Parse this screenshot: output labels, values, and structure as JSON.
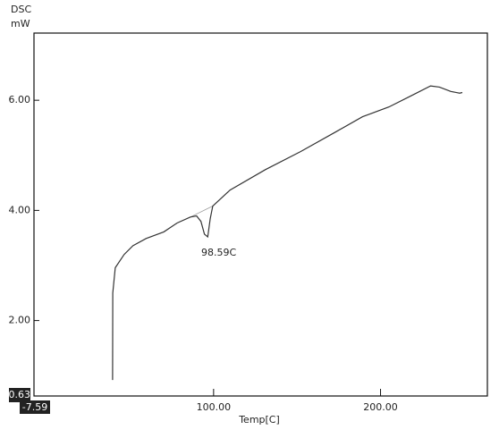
{
  "chart_data": {
    "type": "line",
    "y_label_top": "DSC",
    "y_label_unit": "mW",
    "x_label": "Temp[C]",
    "annotation": "98.59C",
    "xlim": [
      -7.59,
      264
    ],
    "ylim": [
      0.63,
      7.22
    ],
    "xticks": [
      {
        "value": -7.59,
        "label": "-7.59"
      },
      {
        "value": 100,
        "label": "100.00"
      },
      {
        "value": 200,
        "label": "200.00"
      }
    ],
    "yticks": [
      {
        "value": 0.63,
        "label": "0.63"
      },
      {
        "value": 2,
        "label": "2.00"
      },
      {
        "value": 4,
        "label": "4.00"
      },
      {
        "value": 6,
        "label": "6.00"
      }
    ],
    "color": "#333333",
    "x": [
      39.5,
      39.6,
      41.1,
      46.4,
      51.7,
      59.6,
      70.2,
      78.1,
      86.1,
      89.8,
      92.4,
      94.5,
      96.5,
      98.0,
      99.5,
      109.9,
      131,
      152.2,
      173.4,
      189.2,
      205.1,
      218.3,
      230,
      235.3,
      242.1,
      247.4,
      249
    ],
    "values": [
      0.92,
      2.5,
      2.96,
      3.2,
      3.36,
      3.49,
      3.61,
      3.77,
      3.88,
      3.9,
      3.8,
      3.57,
      3.52,
      3.85,
      4.08,
      4.37,
      4.74,
      5.07,
      5.43,
      5.7,
      5.88,
      6.08,
      6.26,
      6.24,
      6.16,
      6.13,
      6.14
    ],
    "baseline": {
      "x": [
        86.1,
        99.5
      ],
      "values": [
        3.88,
        4.08
      ],
      "color": "#999999"
    }
  }
}
